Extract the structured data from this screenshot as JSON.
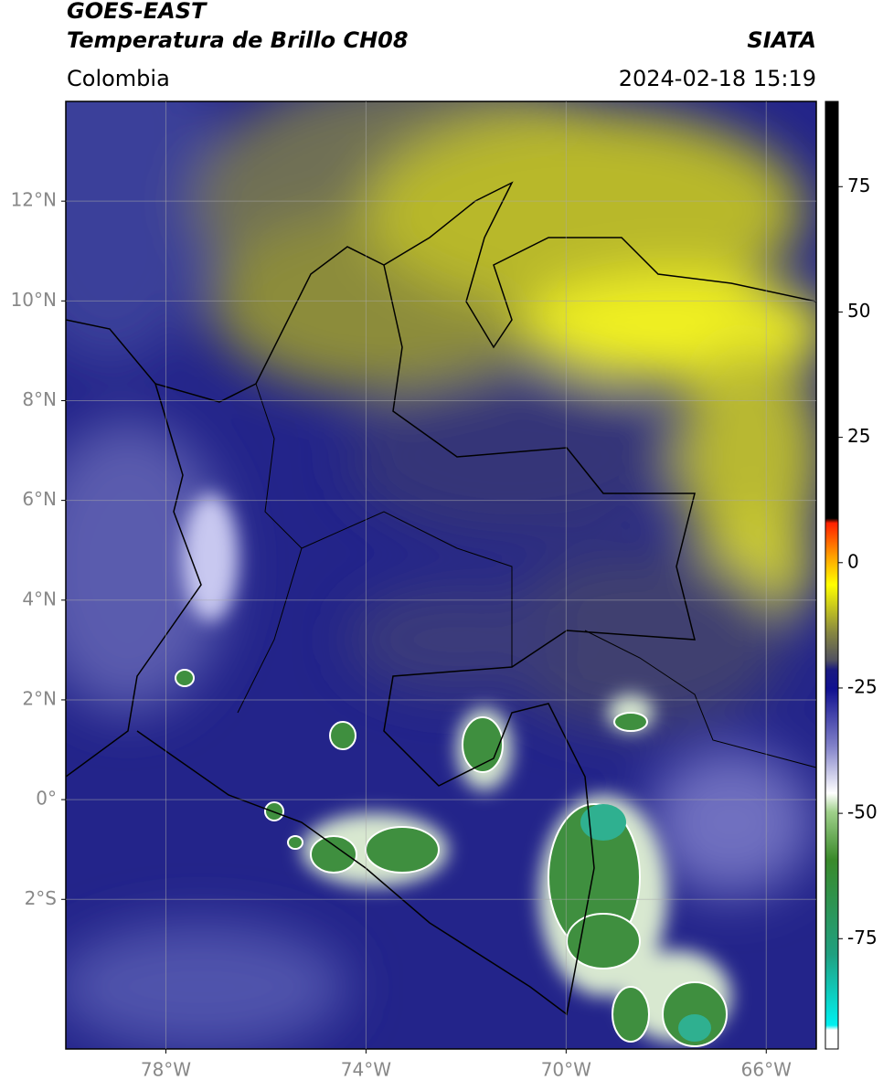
{
  "header": {
    "title": "GOES-EAST",
    "subtitle": "Temperatura de Brillo CH08",
    "source": "SIATA",
    "region": "Colombia",
    "datetime": "2024-02-18 15:19"
  },
  "map": {
    "xlim": [
      -80,
      -65
    ],
    "ylim": [
      -5,
      14
    ],
    "xticks": [
      {
        "value": -78,
        "label": "78°W"
      },
      {
        "value": -74,
        "label": "74°W"
      },
      {
        "value": -70,
        "label": "70°W"
      },
      {
        "value": -66,
        "label": "66°W"
      }
    ],
    "yticks": [
      {
        "value": -2,
        "label": "2°S"
      },
      {
        "value": 0,
        "label": "0°"
      },
      {
        "value": 2,
        "label": "2°N"
      },
      {
        "value": 4,
        "label": "4°N"
      },
      {
        "value": 6,
        "label": "6°N"
      },
      {
        "value": 8,
        "label": "8°N"
      },
      {
        "value": 10,
        "label": "10°N"
      },
      {
        "value": 12,
        "label": "12°N"
      }
    ]
  },
  "colorbar": {
    "lim": [
      -97,
      92
    ],
    "ticks": [
      -75,
      -50,
      -25,
      0,
      25,
      50,
      75
    ]
  }
}
